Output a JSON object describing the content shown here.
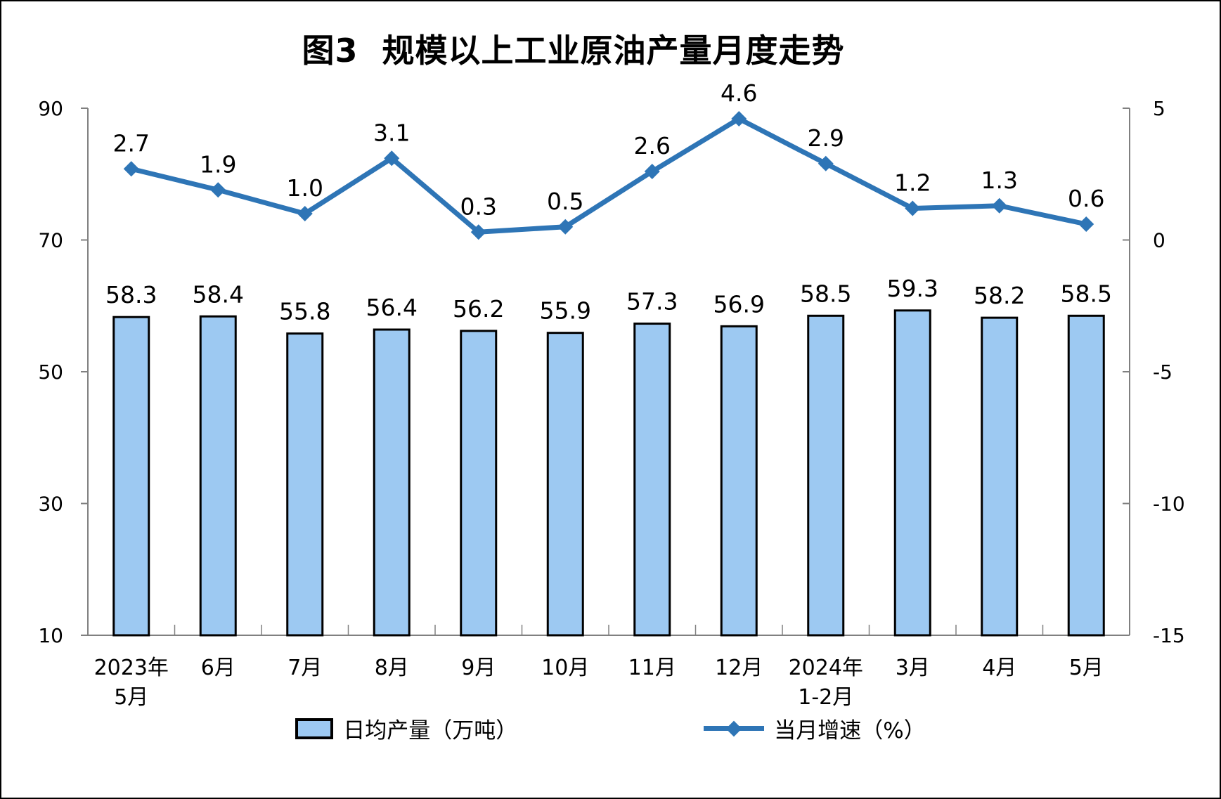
{
  "title": "图3  规模以上工业原油产量月度走势",
  "legend": {
    "bar_label": "日均产量（万吨）",
    "line_label": "当月增速（%）"
  },
  "colors": {
    "bar_fill": "#9DC9F2",
    "bar_border": "#000000",
    "line": "#2E75B6",
    "axis": "#808080",
    "text": "#000000"
  },
  "chart_data": {
    "type": "combo",
    "title": "图3  规模以上工业原油产量月度走势",
    "categories": [
      "2023年\n5月",
      "6月",
      "7月",
      "8月",
      "9月",
      "10月",
      "11月",
      "12月",
      "2024年\n1-2月",
      "3月",
      "4月",
      "5月"
    ],
    "series": [
      {
        "name": "日均产量（万吨）",
        "type": "bar",
        "axis": "left",
        "values": [
          58.3,
          58.4,
          55.8,
          56.4,
          56.2,
          55.9,
          57.3,
          56.9,
          58.5,
          59.3,
          58.2,
          58.5
        ],
        "labels": [
          "58.3",
          "58.4",
          "55.8",
          "56.4",
          "56.2",
          "55.9",
          "57.3",
          "56.9",
          "58.5",
          "59.3",
          "58.2",
          "58.5"
        ]
      },
      {
        "name": "当月增速（%）",
        "type": "line",
        "axis": "right",
        "values": [
          2.7,
          1.9,
          1.0,
          3.1,
          0.3,
          0.5,
          2.6,
          4.6,
          2.9,
          1.2,
          1.3,
          0.6
        ],
        "labels": [
          "2.7",
          "1.9",
          "1.0",
          "3.1",
          "0.3",
          "0.5",
          "2.6",
          "4.6",
          "2.9",
          "1.2",
          "1.3",
          "0.6"
        ]
      }
    ],
    "left_axis": {
      "min": 10,
      "max": 90,
      "ticks": [
        90,
        70,
        50,
        30,
        10
      ]
    },
    "right_axis": {
      "min": -15,
      "max": 5,
      "ticks": [
        5,
        0,
        -5,
        -10,
        -15
      ]
    },
    "grid": false,
    "legend_position": "bottom"
  }
}
